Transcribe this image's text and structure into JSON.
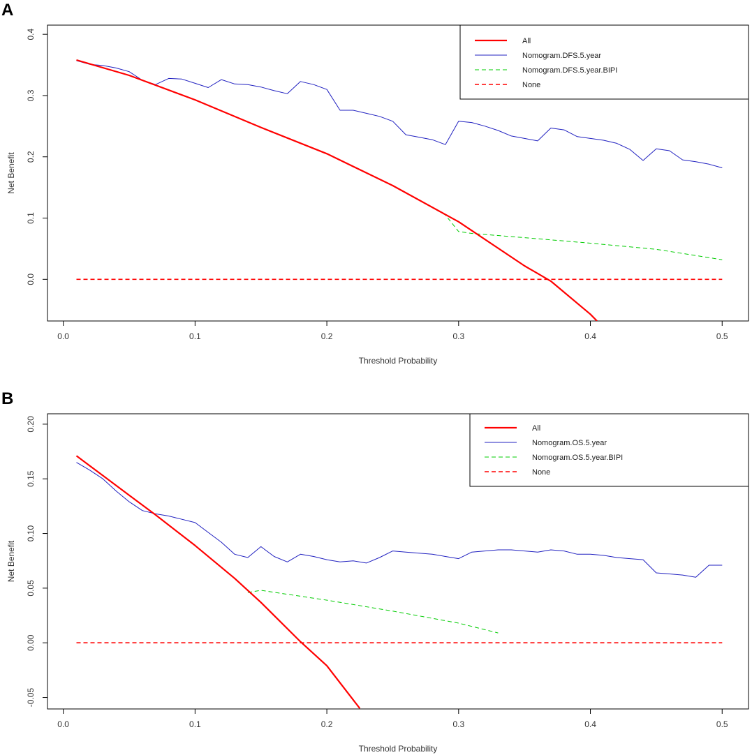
{
  "chart_data": [
    {
      "panel_label": "A",
      "type": "line",
      "title": "",
      "xlabel": "Threshold Probability",
      "ylabel": "Net Benefit",
      "xlim": [
        -0.012,
        0.52
      ],
      "ylim": [
        -0.068,
        0.415
      ],
      "xticks": [
        0.0,
        0.1,
        0.2,
        0.3,
        0.4,
        0.5
      ],
      "xtick_labels": [
        "0.0",
        "0.1",
        "0.2",
        "0.3",
        "0.4",
        "0.5"
      ],
      "yticks": [
        0.0,
        0.1,
        0.2,
        0.3,
        0.4
      ],
      "ytick_labels": [
        "0.0",
        "0.1",
        "0.2",
        "0.3",
        "0.4"
      ],
      "legend_position": "top-right",
      "series": [
        {
          "name": "All",
          "color": "#ff0000",
          "dash": "solid",
          "width": "thick",
          "x": [
            0.01,
            0.05,
            0.1,
            0.15,
            0.2,
            0.25,
            0.3,
            0.35,
            0.37,
            0.4,
            0.405
          ],
          "y": [
            0.358,
            0.333,
            0.293,
            0.248,
            0.205,
            0.153,
            0.094,
            0.022,
            -0.003,
            -0.057,
            -0.068
          ]
        },
        {
          "name": "Nomogram.DFS.5.year",
          "color": "#2020c0",
          "dash": "solid",
          "width": "thin",
          "x": [
            0.01,
            0.02,
            0.03,
            0.04,
            0.05,
            0.06,
            0.07,
            0.08,
            0.09,
            0.1,
            0.11,
            0.12,
            0.13,
            0.14,
            0.15,
            0.16,
            0.17,
            0.18,
            0.19,
            0.2,
            0.21,
            0.22,
            0.23,
            0.24,
            0.25,
            0.26,
            0.27,
            0.28,
            0.29,
            0.3,
            0.31,
            0.32,
            0.33,
            0.34,
            0.35,
            0.36,
            0.37,
            0.38,
            0.39,
            0.4,
            0.41,
            0.42,
            0.43,
            0.44,
            0.45,
            0.46,
            0.47,
            0.48,
            0.49,
            0.5
          ],
          "y": [
            0.357,
            0.351,
            0.349,
            0.345,
            0.339,
            0.325,
            0.318,
            0.328,
            0.327,
            0.32,
            0.313,
            0.326,
            0.319,
            0.318,
            0.314,
            0.308,
            0.303,
            0.323,
            0.318,
            0.31,
            0.276,
            0.276,
            0.271,
            0.266,
            0.258,
            0.236,
            0.232,
            0.228,
            0.22,
            0.258,
            0.256,
            0.25,
            0.243,
            0.234,
            0.23,
            0.226,
            0.247,
            0.244,
            0.233,
            0.23,
            0.227,
            0.222,
            0.212,
            0.194,
            0.213,
            0.21,
            0.195,
            0.192,
            0.188,
            0.182
          ]
        },
        {
          "name": "Nomogram.DFS.5.year.BIPI",
          "color": "#00cc00",
          "dash": "dashed",
          "width": "thin",
          "x": [
            0.01,
            0.05,
            0.1,
            0.15,
            0.2,
            0.25,
            0.29,
            0.3,
            0.31,
            0.35,
            0.4,
            0.45,
            0.5
          ],
          "y": [
            0.358,
            0.333,
            0.293,
            0.248,
            0.205,
            0.153,
            0.105,
            0.078,
            0.075,
            0.068,
            0.059,
            0.049,
            0.032
          ]
        },
        {
          "name": "None",
          "color": "#ff0000",
          "dash": "dashed",
          "width": "medium",
          "x": [
            0.01,
            0.5
          ],
          "y": [
            0.0,
            0.0
          ]
        }
      ]
    },
    {
      "panel_label": "B",
      "type": "line",
      "title": "",
      "xlabel": "Threshold Probability",
      "ylabel": "Net Benefit",
      "xlim": [
        -0.012,
        0.52
      ],
      "ylim": [
        -0.0605,
        0.2095
      ],
      "xticks": [
        0.0,
        0.1,
        0.2,
        0.3,
        0.4,
        0.5
      ],
      "xtick_labels": [
        "0.0",
        "0.1",
        "0.2",
        "0.3",
        "0.4",
        "0.5"
      ],
      "yticks": [
        -0.05,
        0.0,
        0.05,
        0.1,
        0.15,
        0.2
      ],
      "ytick_labels": [
        "-0.05",
        "0.00",
        "0.05",
        "0.10",
        "0.15",
        "0.20"
      ],
      "legend_position": "top-right",
      "series": [
        {
          "name": "All",
          "color": "#ff0000",
          "dash": "solid",
          "width": "thick",
          "x": [
            0.01,
            0.03,
            0.05,
            0.07,
            0.1,
            0.13,
            0.15,
            0.18,
            0.2,
            0.225
          ],
          "y": [
            0.171,
            0.153,
            0.135,
            0.117,
            0.089,
            0.059,
            0.037,
            0.001,
            -0.021,
            -0.06
          ]
        },
        {
          "name": "Nomogram.OS.5.year",
          "color": "#2020c0",
          "dash": "solid",
          "width": "thin",
          "x": [
            0.01,
            0.02,
            0.03,
            0.04,
            0.05,
            0.06,
            0.07,
            0.08,
            0.09,
            0.1,
            0.11,
            0.12,
            0.13,
            0.14,
            0.15,
            0.16,
            0.17,
            0.18,
            0.19,
            0.2,
            0.21,
            0.22,
            0.23,
            0.24,
            0.25,
            0.26,
            0.27,
            0.28,
            0.29,
            0.3,
            0.31,
            0.32,
            0.33,
            0.34,
            0.35,
            0.36,
            0.37,
            0.38,
            0.39,
            0.4,
            0.41,
            0.42,
            0.43,
            0.44,
            0.45,
            0.46,
            0.47,
            0.48,
            0.49,
            0.5
          ],
          "y": [
            0.165,
            0.158,
            0.15,
            0.139,
            0.129,
            0.121,
            0.118,
            0.116,
            0.113,
            0.11,
            0.101,
            0.092,
            0.081,
            0.078,
            0.088,
            0.079,
            0.074,
            0.081,
            0.079,
            0.076,
            0.074,
            0.075,
            0.073,
            0.078,
            0.084,
            0.083,
            0.082,
            0.081,
            0.079,
            0.077,
            0.083,
            0.084,
            0.085,
            0.085,
            0.084,
            0.083,
            0.085,
            0.084,
            0.081,
            0.081,
            0.08,
            0.078,
            0.077,
            0.076,
            0.064,
            0.063,
            0.062,
            0.06,
            0.071,
            0.071
          ]
        },
        {
          "name": "Nomogram.OS.5.year.BIPI",
          "color": "#00cc00",
          "dash": "dashed",
          "width": "thin",
          "x": [
            0.14,
            0.15,
            0.2,
            0.25,
            0.3,
            0.33
          ],
          "y": [
            0.046,
            0.048,
            0.039,
            0.029,
            0.018,
            0.009
          ]
        },
        {
          "name": "None",
          "color": "#ff0000",
          "dash": "dashed",
          "width": "medium",
          "x": [
            0.01,
            0.5
          ],
          "y": [
            0.0,
            0.0
          ]
        }
      ]
    }
  ]
}
